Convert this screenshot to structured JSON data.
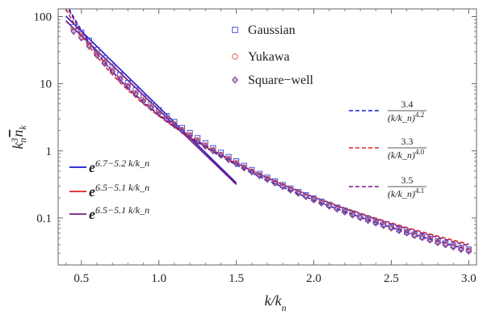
{
  "chart_data": {
    "type": "scatter",
    "xlabel": "k/k_n",
    "ylabel": "k_n^3 n_k",
    "xlim": [
      0.35,
      3.05
    ],
    "ylim": [
      0.02,
      130
    ],
    "yscale": "log",
    "grid": false,
    "x_ticks": [
      0.5,
      1.0,
      1.5,
      2.0,
      2.5,
      3.0
    ],
    "x_tick_labels": [
      "0.5",
      "1.0",
      "1.5",
      "2.0",
      "2.5",
      "3.0"
    ],
    "y_ticks": [
      0.1,
      1,
      10,
      100
    ],
    "y_tick_labels": [
      "0.1",
      "1",
      "10",
      "100"
    ],
    "marker_legend": [
      {
        "name": "Gaussian",
        "marker": "square",
        "color": "#4a50d8"
      },
      {
        "name": "Yukawa",
        "marker": "circle",
        "color": "#e0564e"
      },
      {
        "name": "Square−well",
        "marker": "diamond",
        "color": "#7a3a9a"
      }
    ],
    "series": [
      {
        "name": "Gaussian",
        "marker": "square",
        "color": "#4a50d8",
        "points": [
          [
            0.45,
            70
          ],
          [
            0.5,
            58
          ],
          [
            0.55,
            44
          ],
          [
            0.6,
            32
          ],
          [
            0.65,
            24
          ],
          [
            0.7,
            18
          ],
          [
            0.75,
            13.5
          ],
          [
            0.8,
            10.3
          ],
          [
            0.85,
            8
          ],
          [
            0.9,
            6.3
          ],
          [
            0.95,
            5
          ],
          [
            1.0,
            4.05
          ],
          [
            1.05,
            3.3
          ],
          [
            1.1,
            2.7
          ],
          [
            1.15,
            2.2
          ],
          [
            1.2,
            1.85
          ],
          [
            1.25,
            1.55
          ],
          [
            1.3,
            1.3
          ],
          [
            1.35,
            1.1
          ],
          [
            1.4,
            0.94
          ],
          [
            1.45,
            0.81
          ],
          [
            1.5,
            0.7
          ],
          [
            1.55,
            0.6
          ],
          [
            1.6,
            0.52
          ],
          [
            1.65,
            0.455
          ],
          [
            1.7,
            0.4
          ],
          [
            1.75,
            0.352
          ],
          [
            1.8,
            0.31
          ],
          [
            1.85,
            0.275
          ],
          [
            1.9,
            0.245
          ],
          [
            1.95,
            0.219
          ],
          [
            2.0,
            0.196
          ],
          [
            2.05,
            0.176
          ],
          [
            2.1,
            0.158
          ],
          [
            2.15,
            0.143
          ],
          [
            2.2,
            0.129
          ],
          [
            2.25,
            0.117
          ],
          [
            2.3,
            0.106
          ],
          [
            2.35,
            0.097
          ],
          [
            2.4,
            0.088
          ],
          [
            2.45,
            0.081
          ],
          [
            2.5,
            0.074
          ],
          [
            2.55,
            0.068
          ],
          [
            2.6,
            0.062
          ],
          [
            2.65,
            0.057
          ],
          [
            2.7,
            0.053
          ],
          [
            2.75,
            0.049
          ],
          [
            2.8,
            0.045
          ],
          [
            2.85,
            0.042
          ],
          [
            2.9,
            0.039
          ],
          [
            2.95,
            0.036
          ],
          [
            3.0,
            0.034
          ]
        ]
      },
      {
        "name": "Yukawa",
        "marker": "circle",
        "color": "#e0564e",
        "points": [
          [
            0.45,
            62
          ],
          [
            0.5,
            50
          ],
          [
            0.55,
            38
          ],
          [
            0.6,
            28
          ],
          [
            0.65,
            21
          ],
          [
            0.7,
            16
          ],
          [
            0.75,
            12
          ],
          [
            0.8,
            9.3
          ],
          [
            0.85,
            7.3
          ],
          [
            0.9,
            5.8
          ],
          [
            0.95,
            4.6
          ],
          [
            1.0,
            3.75
          ],
          [
            1.05,
            3.05
          ],
          [
            1.1,
            2.5
          ],
          [
            1.15,
            2.06
          ],
          [
            1.2,
            1.72
          ],
          [
            1.25,
            1.44
          ],
          [
            1.3,
            1.21
          ],
          [
            1.35,
            1.03
          ],
          [
            1.4,
            0.88
          ],
          [
            1.45,
            0.76
          ],
          [
            1.5,
            0.66
          ],
          [
            1.55,
            0.57
          ],
          [
            1.6,
            0.495
          ],
          [
            1.65,
            0.435
          ],
          [
            1.7,
            0.383
          ],
          [
            1.75,
            0.338
          ],
          [
            1.8,
            0.299
          ],
          [
            1.85,
            0.265
          ],
          [
            1.9,
            0.236
          ],
          [
            1.95,
            0.211
          ],
          [
            2.0,
            0.189
          ],
          [
            2.05,
            0.17
          ],
          [
            2.1,
            0.153
          ],
          [
            2.15,
            0.138
          ],
          [
            2.2,
            0.125
          ],
          [
            2.25,
            0.113
          ],
          [
            2.3,
            0.103
          ],
          [
            2.35,
            0.094
          ],
          [
            2.4,
            0.086
          ],
          [
            2.45,
            0.079
          ],
          [
            2.5,
            0.072
          ],
          [
            2.55,
            0.066
          ],
          [
            2.6,
            0.061
          ],
          [
            2.65,
            0.056
          ],
          [
            2.7,
            0.052
          ],
          [
            2.75,
            0.048
          ],
          [
            2.8,
            0.044
          ],
          [
            2.85,
            0.041
          ],
          [
            2.9,
            0.038
          ],
          [
            2.95,
            0.035
          ],
          [
            3.0,
            0.033
          ]
        ]
      },
      {
        "name": "Square−well",
        "marker": "diamond",
        "color": "#7a3a9a",
        "points": [
          [
            0.45,
            60
          ],
          [
            0.5,
            48
          ],
          [
            0.55,
            36
          ],
          [
            0.6,
            26.5
          ],
          [
            0.65,
            20
          ],
          [
            0.7,
            15
          ],
          [
            0.75,
            11.5
          ],
          [
            0.8,
            9
          ],
          [
            0.85,
            7
          ],
          [
            0.9,
            5.5
          ],
          [
            0.95,
            4.4
          ],
          [
            1.0,
            3.6
          ],
          [
            1.05,
            2.95
          ],
          [
            1.1,
            2.42
          ],
          [
            1.15,
            2.0
          ],
          [
            1.2,
            1.66
          ],
          [
            1.25,
            1.39
          ],
          [
            1.3,
            1.17
          ],
          [
            1.35,
            1.0
          ],
          [
            1.4,
            0.86
          ],
          [
            1.45,
            0.74
          ],
          [
            1.5,
            0.64
          ],
          [
            1.55,
            0.555
          ],
          [
            1.6,
            0.485
          ],
          [
            1.65,
            0.425
          ],
          [
            1.7,
            0.375
          ],
          [
            1.75,
            0.332
          ],
          [
            1.8,
            0.294
          ],
          [
            1.85,
            0.261
          ],
          [
            1.9,
            0.233
          ],
          [
            1.95,
            0.208
          ],
          [
            2.0,
            0.186
          ],
          [
            2.05,
            0.167
          ],
          [
            2.1,
            0.15
          ],
          [
            2.15,
            0.136
          ],
          [
            2.2,
            0.123
          ],
          [
            2.25,
            0.111
          ],
          [
            2.3,
            0.101
          ],
          [
            2.35,
            0.092
          ],
          [
            2.4,
            0.084
          ],
          [
            2.45,
            0.077
          ],
          [
            2.5,
            0.071
          ],
          [
            2.55,
            0.065
          ],
          [
            2.6,
            0.06
          ],
          [
            2.65,
            0.055
          ],
          [
            2.7,
            0.051
          ],
          [
            2.75,
            0.047
          ],
          [
            2.8,
            0.043
          ],
          [
            2.85,
            0.04
          ],
          [
            2.9,
            0.037
          ],
          [
            2.95,
            0.034
          ],
          [
            3.0,
            0.032
          ]
        ]
      }
    ],
    "fits": [
      {
        "kind": "exp",
        "a": 6.7,
        "b": 5.2,
        "x_range": [
          0.4,
          1.5
        ],
        "style": "solid",
        "color": "#1a1acc",
        "label_base": "e",
        "label_exp": "6.7−5.2 k/k_n"
      },
      {
        "kind": "exp",
        "a": 6.5,
        "b": 5.1,
        "x_range": [
          0.4,
          1.5
        ],
        "style": "solid",
        "color": "#dd2222",
        "label_base": "e",
        "label_exp": "6.5−5.1 k/k_n"
      },
      {
        "kind": "exp",
        "a": 6.5,
        "b": 5.1,
        "x_range": [
          0.4,
          1.5
        ],
        "style": "solid",
        "color": "#7a1a8a",
        "label_base": "e",
        "label_exp": "6.5−5.1 k/k_n"
      },
      {
        "kind": "power",
        "c": 3.4,
        "p": 4.2,
        "x_range": [
          0.4,
          3.0
        ],
        "style": "dashed",
        "color": "#1a1acc",
        "label_num": "3.4",
        "label_den": "(k/k_n)",
        "label_pow": "4.2"
      },
      {
        "kind": "power",
        "c": 3.3,
        "p": 4.0,
        "x_range": [
          0.4,
          3.0
        ],
        "style": "dashed",
        "color": "#dd2222",
        "label_num": "3.3",
        "label_den": "(k/k_n)",
        "label_pow": "4.0"
      },
      {
        "kind": "power",
        "c": 3.5,
        "p": 4.1,
        "x_range": [
          0.4,
          3.0
        ],
        "style": "dashed",
        "color": "#7a1a8a",
        "label_num": "3.5",
        "label_den": "(k/k_n)",
        "label_pow": "4.1"
      }
    ]
  }
}
